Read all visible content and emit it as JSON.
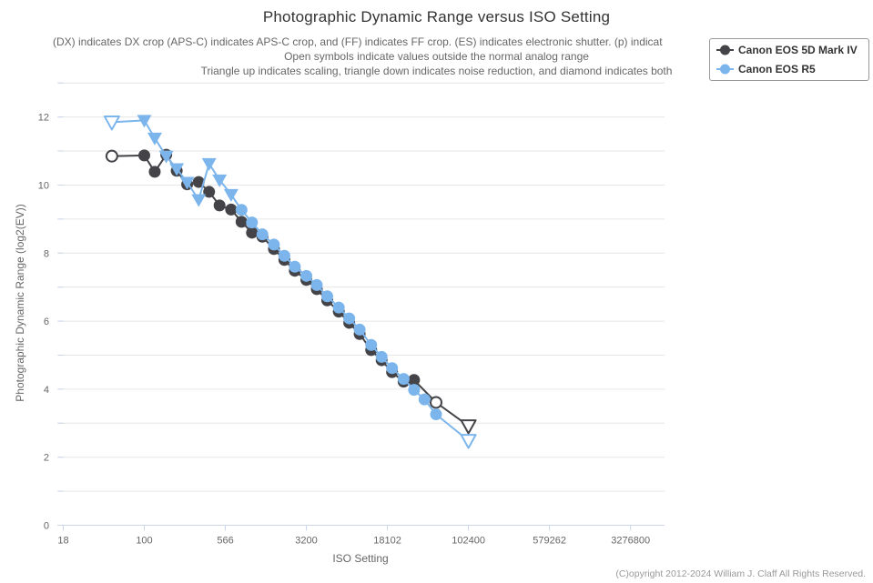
{
  "title": "Photographic Dynamic Range versus ISO Setting",
  "subtitle": {
    "lines": [
      "(DX) indicates DX crop (APS-C) indicates APS-C crop, and (FF) indicates FF crop. (ES) indicates electronic shutter. (p) indicat",
      "Open symbols indicate values outside the normal analog range",
      "Triangle up indicates scaling, triangle down indicates noise reduction, and diamond indicates both"
    ]
  },
  "footer": "(C)opyright 2012-2024 William J. Claff All Rights Reserved.",
  "legend": {
    "items": [
      {
        "label": "Canon EOS 5D Mark IV",
        "color": "#434348"
      },
      {
        "label": "Canon EOS R5",
        "color": "#7cb5ec"
      }
    ]
  },
  "chart_data": {
    "type": "line",
    "title": "Photographic Dynamic Range versus ISO Setting",
    "xlabel": "ISO Setting",
    "ylabel": "Photographic Dynamic Range (log2(EV))",
    "x_axis": {
      "label": "ISO Setting",
      "scale": "log",
      "tick_values": [
        17.677,
        100,
        565.7,
        3200,
        18102,
        102400,
        579262,
        3276800
      ],
      "tick_labels": [
        "18",
        "100",
        "566",
        "3200",
        "18102",
        "102400",
        "579262",
        "3276800"
      ]
    },
    "y_axis": {
      "label": "Photographic Dynamic Range (log2(EV))",
      "min": 0,
      "max": 13,
      "labeled_ticks": [
        0,
        2,
        4,
        6,
        8,
        10,
        12
      ],
      "gridline_step": 1
    },
    "grid": "horizontal",
    "legend_position": "top-right",
    "marker_legend": "open = outside normal analog range, triangle-down = noise reduction",
    "series": [
      {
        "name": "Canon EOS 5D Mark IV",
        "key": "canon-eos-5d-mark-iv",
        "color": "#434348",
        "points": [
          [
            50,
            10.85,
            "circle-open"
          ],
          [
            100,
            10.87,
            "circle"
          ],
          [
            125,
            10.39,
            "circle"
          ],
          [
            160,
            10.89,
            "circle"
          ],
          [
            200,
            10.42,
            "circle"
          ],
          [
            250,
            10.02,
            "circle"
          ],
          [
            320,
            10.09,
            "circle"
          ],
          [
            400,
            9.8,
            "circle"
          ],
          [
            500,
            9.4,
            "circle"
          ],
          [
            640,
            9.28,
            "circle"
          ],
          [
            800,
            8.92,
            "circle"
          ],
          [
            1000,
            8.6,
            "circle"
          ],
          [
            1250,
            8.48,
            "circle"
          ],
          [
            1600,
            8.12,
            "circle"
          ],
          [
            2000,
            7.8,
            "circle"
          ],
          [
            2500,
            7.48,
            "circle"
          ],
          [
            3200,
            7.21,
            "circle"
          ],
          [
            4000,
            6.94,
            "circle"
          ],
          [
            5000,
            6.61,
            "circle"
          ],
          [
            6400,
            6.28,
            "circle"
          ],
          [
            8000,
            5.95,
            "circle"
          ],
          [
            10000,
            5.62,
            "circle"
          ],
          [
            12800,
            5.15,
            "circle"
          ],
          [
            16000,
            4.85,
            "circle"
          ],
          [
            20000,
            4.5,
            "circle"
          ],
          [
            25600,
            4.22,
            "circle"
          ],
          [
            32000,
            4.27,
            "circle"
          ],
          [
            51200,
            3.61,
            "circle-open"
          ],
          [
            102400,
            2.92,
            "triangle-down-open"
          ]
        ]
      },
      {
        "name": "Canon EOS R5",
        "key": "canon-eos-r5",
        "color": "#7cb5ec",
        "points": [
          [
            50,
            11.85,
            "triangle-down-open"
          ],
          [
            100,
            11.9,
            "triangle-down"
          ],
          [
            125,
            11.38,
            "triangle-down"
          ],
          [
            160,
            10.85,
            "triangle-down"
          ],
          [
            200,
            10.48,
            "triangle-down"
          ],
          [
            250,
            10.08,
            "triangle-down"
          ],
          [
            320,
            9.57,
            "triangle-down"
          ],
          [
            400,
            10.63,
            "triangle-down"
          ],
          [
            500,
            10.15,
            "triangle-down"
          ],
          [
            640,
            9.72,
            "triangle-down"
          ],
          [
            800,
            9.27,
            "circle"
          ],
          [
            1000,
            8.9,
            "circle"
          ],
          [
            1250,
            8.55,
            "circle"
          ],
          [
            1600,
            8.25,
            "circle"
          ],
          [
            2000,
            7.92,
            "circle"
          ],
          [
            2500,
            7.6,
            "circle"
          ],
          [
            3200,
            7.33,
            "circle"
          ],
          [
            4000,
            7.06,
            "circle"
          ],
          [
            5000,
            6.73,
            "circle"
          ],
          [
            6400,
            6.4,
            "circle"
          ],
          [
            8000,
            6.08,
            "circle"
          ],
          [
            10000,
            5.75,
            "circle"
          ],
          [
            12800,
            5.3,
            "circle"
          ],
          [
            16000,
            4.95,
            "circle"
          ],
          [
            20000,
            4.62,
            "circle"
          ],
          [
            25600,
            4.3,
            "circle"
          ],
          [
            32000,
            3.98,
            "circle"
          ],
          [
            40000,
            3.7,
            "circle"
          ],
          [
            51200,
            3.26,
            "circle"
          ],
          [
            102400,
            2.49,
            "triangle-down-open"
          ]
        ]
      }
    ],
    "colors": {
      "gridline": "#e6e6e6",
      "axis_line": "#ccd6eb",
      "tick_label": "#666666",
      "title": "#333333",
      "subtitle": "#666666"
    }
  }
}
